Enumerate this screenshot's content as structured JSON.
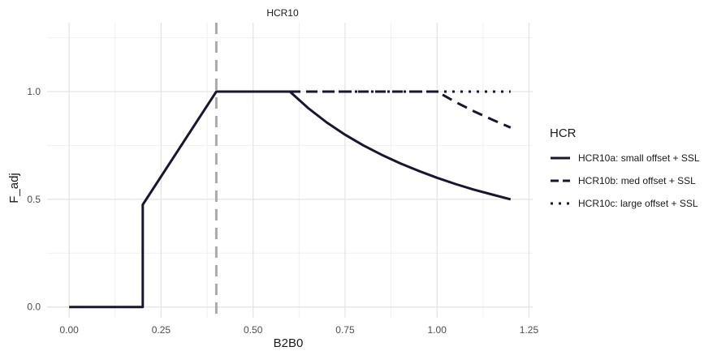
{
  "chart_data": {
    "type": "line",
    "title": "HCR10",
    "xlabel": "B2B0",
    "ylabel": "F_adj",
    "xlim": [
      -0.06,
      1.26
    ],
    "ylim": [
      -0.05,
      1.32
    ],
    "x_ticks": [
      0.0,
      0.25,
      0.5,
      0.75,
      1.0,
      1.25
    ],
    "x_tick_labels": [
      "0.00",
      "0.25",
      "0.50",
      "0.75",
      "1.00",
      "1.25"
    ],
    "y_ticks": [
      0.0,
      0.5,
      1.0
    ],
    "y_tick_labels": [
      "0.0",
      "0.5",
      "1.0"
    ],
    "grid": true,
    "reference_line": {
      "x": 0.4,
      "color": "#aaaaaa",
      "style": "dashed"
    },
    "legend": {
      "title": "HCR",
      "placement": "right",
      "entries": [
        {
          "label": "HCR10a: small offset + SSL",
          "style": "solid"
        },
        {
          "label": "HCR10b: med offset + SSL",
          "style": "dashed"
        },
        {
          "label": "HCR10c: large offset + SSL",
          "style": "dotted"
        }
      ]
    },
    "line_color": "#1b1530",
    "series": [
      {
        "name": "HCR10a: small offset + SSL",
        "style": "solid",
        "points": [
          [
            0.0,
            0.0
          ],
          [
            0.2,
            0.0
          ],
          [
            0.2,
            0.475
          ],
          [
            0.4,
            1.0
          ],
          [
            0.6,
            1.0
          ],
          [
            0.65,
            0.923
          ],
          [
            0.7,
            0.857
          ],
          [
            0.75,
            0.8
          ],
          [
            0.8,
            0.75
          ],
          [
            0.85,
            0.706
          ],
          [
            0.9,
            0.667
          ],
          [
            0.95,
            0.632
          ],
          [
            1.0,
            0.6
          ],
          [
            1.05,
            0.571
          ],
          [
            1.1,
            0.545
          ],
          [
            1.15,
            0.522
          ],
          [
            1.2,
            0.5
          ]
        ]
      },
      {
        "name": "HCR10b: med offset + SSL",
        "style": "dashed",
        "points": [
          [
            0.6,
            1.0
          ],
          [
            1.0,
            1.0
          ],
          [
            1.05,
            0.952
          ],
          [
            1.1,
            0.909
          ],
          [
            1.15,
            0.87
          ],
          [
            1.2,
            0.833
          ]
        ]
      },
      {
        "name": "HCR10c: large offset + SSL",
        "style": "dotted",
        "points": [
          [
            0.6,
            1.0
          ],
          [
            1.2,
            1.0
          ]
        ]
      }
    ]
  }
}
